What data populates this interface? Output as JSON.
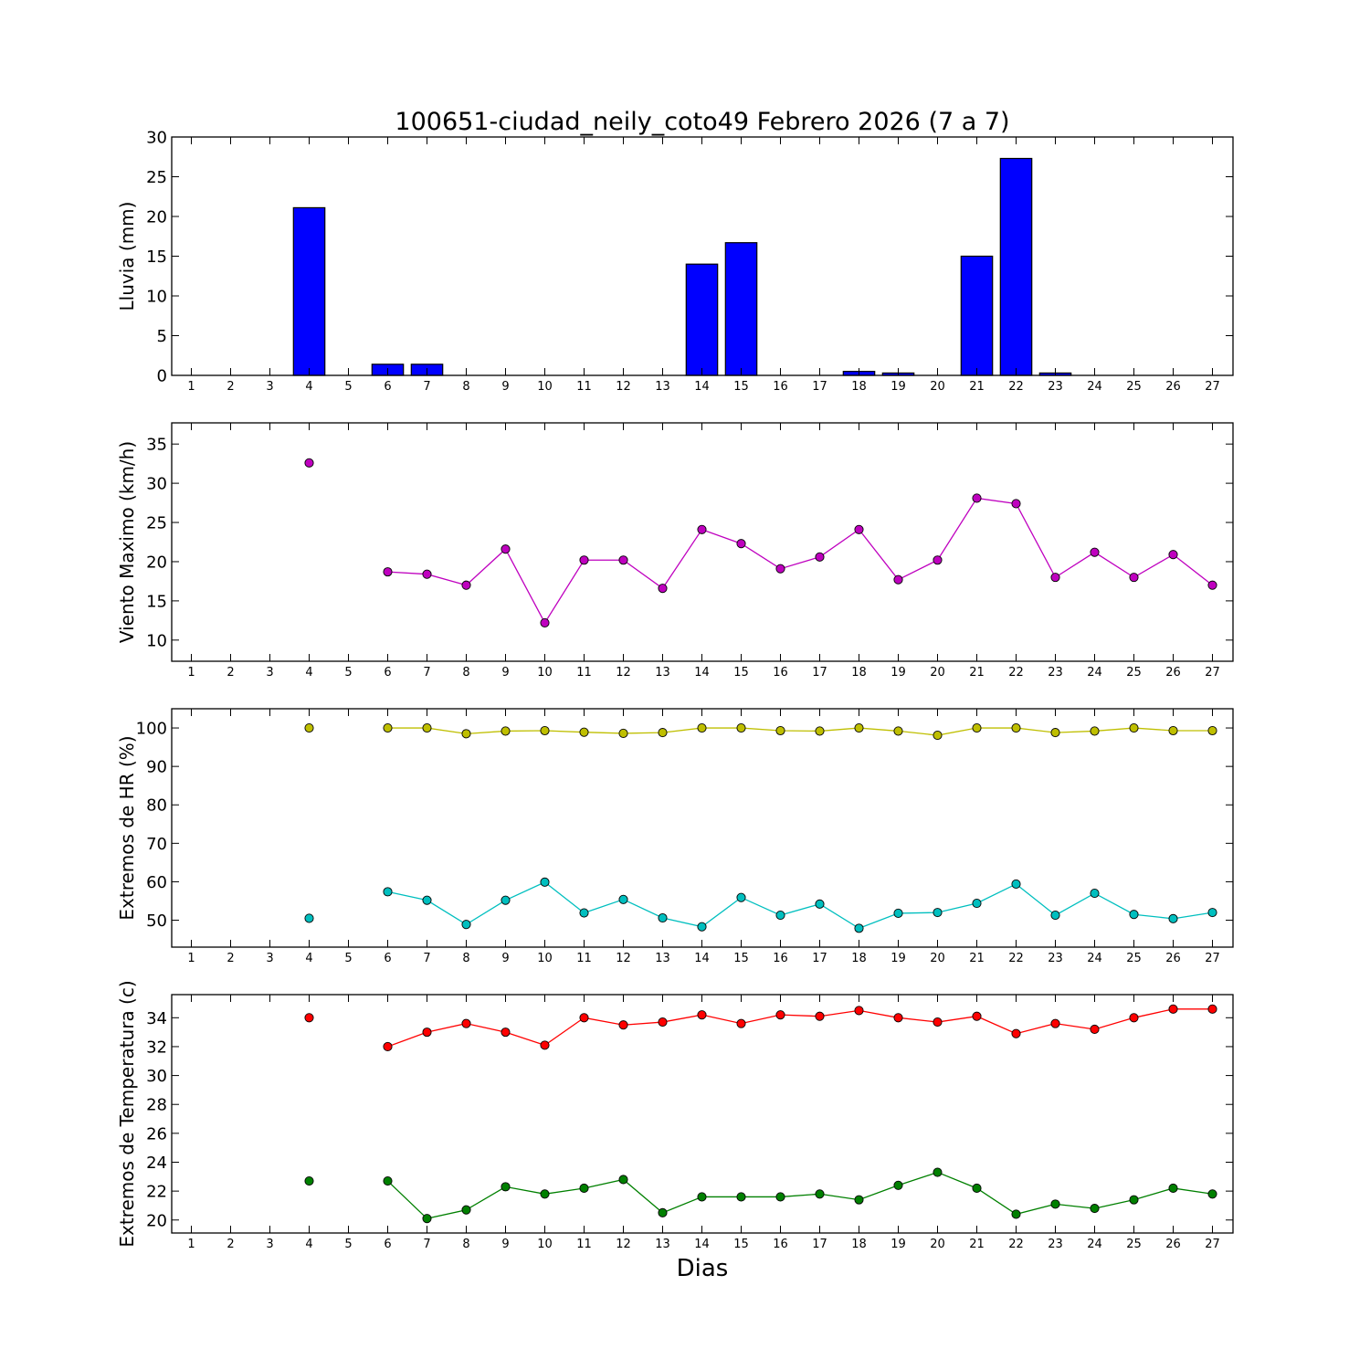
{
  "title": "100651-ciudad_neily_coto49 Febrero 2026  (7 a 7)",
  "xlabel": "Dias",
  "colors": {
    "rain": "#0000ff",
    "wind": "#bf00bf",
    "hr_max": "#bfbf00",
    "hr_min": "#00bfbf",
    "temp_max": "#ff0000",
    "temp_min": "#008000"
  },
  "chart_data": [
    {
      "type": "bar",
      "ylabel": "Lluvia (mm)",
      "ylim": [
        0,
        30
      ],
      "yticks": [
        0,
        5,
        10,
        15,
        20,
        25,
        30
      ],
      "x": [
        1,
        2,
        3,
        4,
        5,
        6,
        7,
        8,
        9,
        10,
        11,
        12,
        13,
        14,
        15,
        16,
        17,
        18,
        19,
        20,
        21,
        22,
        23,
        24,
        25,
        26,
        27
      ],
      "series": [
        {
          "values": [
            0,
            0,
            0,
            21.1,
            0,
            1.4,
            1.4,
            0,
            0,
            0,
            0,
            0,
            0,
            14.0,
            16.7,
            0,
            0,
            0.5,
            0.3,
            0,
            15.0,
            27.3,
            0.3,
            0,
            0,
            0,
            0
          ]
        }
      ],
      "grid": false
    },
    {
      "type": "line",
      "ylabel": "Viento Maximo (km/h)",
      "ylim": [
        7.3,
        37.7
      ],
      "yticks": [
        10,
        15,
        20,
        25,
        30,
        35
      ],
      "x": [
        1,
        2,
        3,
        4,
        5,
        6,
        7,
        8,
        9,
        10,
        11,
        12,
        13,
        14,
        15,
        16,
        17,
        18,
        19,
        20,
        21,
        22,
        23,
        24,
        25,
        26,
        27
      ],
      "series": [
        {
          "values": [
            null,
            null,
            null,
            32.6,
            null,
            18.7,
            18.4,
            17.0,
            21.6,
            12.2,
            20.2,
            20.2,
            16.6,
            24.1,
            22.3,
            19.1,
            20.6,
            24.1,
            17.7,
            20.2,
            28.1,
            27.4,
            18.0,
            21.2,
            18.0,
            20.9,
            17.0
          ]
        }
      ],
      "grid": false
    },
    {
      "type": "line",
      "ylabel": "Extremos de HR (%)",
      "ylim": [
        43,
        105
      ],
      "yticks": [
        50,
        60,
        70,
        80,
        90,
        100
      ],
      "x": [
        1,
        2,
        3,
        4,
        5,
        6,
        7,
        8,
        9,
        10,
        11,
        12,
        13,
        14,
        15,
        16,
        17,
        18,
        19,
        20,
        21,
        22,
        23,
        24,
        25,
        26,
        27
      ],
      "series": [
        {
          "values": [
            null,
            null,
            null,
            100,
            null,
            100,
            100,
            98.5,
            99.2,
            99.3,
            98.9,
            98.6,
            98.8,
            100,
            100,
            99.3,
            99.2,
            100,
            99.2,
            98.1,
            100,
            100,
            98.8,
            99.2,
            100,
            99.3,
            99.3
          ]
        },
        {
          "values": [
            null,
            null,
            null,
            50.5,
            null,
            57.4,
            55.2,
            48.9,
            55.2,
            59.9,
            51.9,
            55.4,
            50.6,
            48.3,
            55.9,
            51.3,
            54.2,
            47.9,
            51.8,
            52.0,
            54.4,
            59.4,
            51.3,
            57.0,
            51.5,
            50.4,
            52.0
          ]
        }
      ],
      "grid": false
    },
    {
      "type": "line",
      "ylabel": "Extremos de Temperatura (c)",
      "ylim": [
        19.1,
        35.6
      ],
      "yticks": [
        20,
        22,
        24,
        26,
        28,
        30,
        32,
        34
      ],
      "x": [
        1,
        2,
        3,
        4,
        5,
        6,
        7,
        8,
        9,
        10,
        11,
        12,
        13,
        14,
        15,
        16,
        17,
        18,
        19,
        20,
        21,
        22,
        23,
        24,
        25,
        26,
        27
      ],
      "series": [
        {
          "values": [
            null,
            null,
            null,
            34.0,
            null,
            32.0,
            33.0,
            33.6,
            33.0,
            32.1,
            34.0,
            33.5,
            33.7,
            34.2,
            33.6,
            34.2,
            34.1,
            34.5,
            34.0,
            33.7,
            34.1,
            32.9,
            33.6,
            33.2,
            34.0,
            34.6,
            34.6
          ]
        },
        {
          "values": [
            null,
            null,
            null,
            22.7,
            null,
            22.7,
            20.1,
            20.7,
            22.3,
            21.8,
            22.2,
            22.8,
            20.5,
            21.6,
            21.6,
            21.6,
            21.8,
            21.4,
            22.4,
            23.3,
            22.2,
            20.4,
            21.1,
            20.8,
            21.4,
            22.2,
            21.8
          ]
        }
      ],
      "grid": false
    }
  ]
}
